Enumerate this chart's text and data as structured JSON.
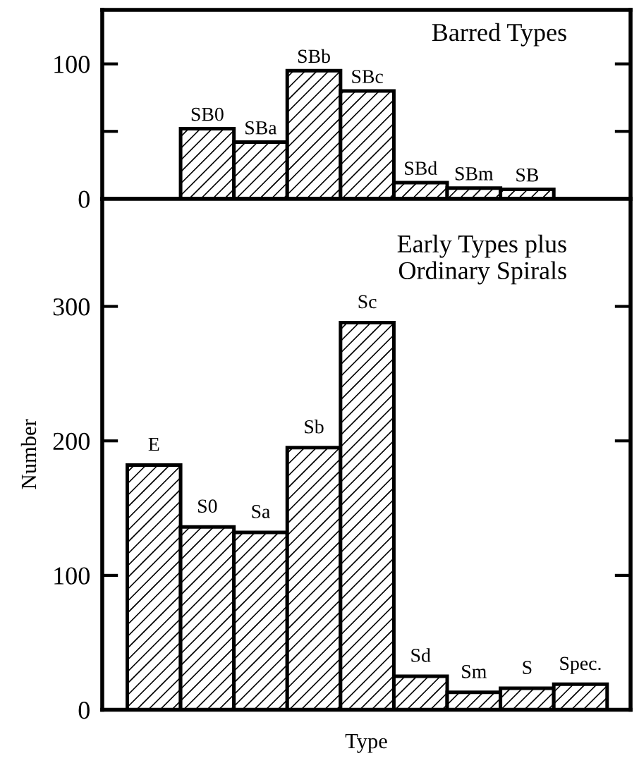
{
  "chart_data": [
    {
      "type": "bar",
      "title": "Barred Types",
      "categories": [
        null,
        "SB0",
        "SBa",
        "SBb",
        "SBc",
        "SBd",
        "SBm",
        "SB",
        null
      ],
      "series": [
        {
          "color": "#000000",
          "values": [
            null,
            52,
            42,
            95,
            80,
            12,
            8,
            7,
            null
          ]
        }
      ],
      "ylim": [
        0,
        140
      ],
      "yticks": [
        0,
        {
          "value": 50,
          "label": null
        },
        100
      ],
      "tick_labels": "y",
      "grid": false,
      "legend": false
    },
    {
      "type": "bar",
      "title": "Early Types plus\nOrdinary Spirals",
      "categories": [
        "E",
        "S0",
        "Sa",
        "Sb",
        "Sc",
        "Sd",
        "Sm",
        "S",
        "Spec."
      ],
      "series": [
        {
          "color": "#000000",
          "values": [
            182,
            136,
            132,
            195,
            288,
            25,
            13,
            16,
            19
          ]
        }
      ],
      "ylim": [
        0,
        380
      ],
      "yticks": [
        0,
        100,
        200,
        300
      ],
      "xlabel": "Type",
      "ylabel": "Number",
      "tick_labels": "y",
      "grid": false,
      "legend": false
    }
  ]
}
